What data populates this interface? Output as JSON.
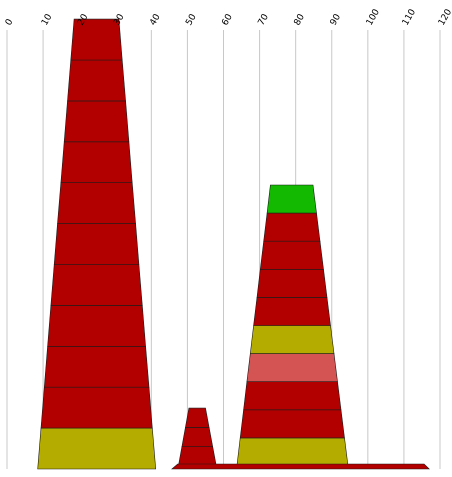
{
  "chart_data": {
    "type": "stacked-trapezoid",
    "xlim": [
      0,
      120
    ],
    "ticks": [
      0,
      10,
      20,
      30,
      40,
      50,
      60,
      70,
      80,
      90,
      100,
      110,
      120
    ],
    "tick_labels": [
      "0",
      "10",
      "20",
      "30",
      "40",
      "50",
      "60",
      "70",
      "80",
      "90",
      "100",
      "110",
      "120"
    ],
    "grid": true,
    "colors": {
      "red": "#b20000",
      "olive": "#b4ad00",
      "green": "#13b800",
      "pink": "#d45353",
      "grid": "#c8c8c8"
    },
    "stacks": [
      {
        "base_left": 8.5,
        "base_right": 41.2,
        "top_left": 18.6,
        "top_right": 31.0,
        "segments": [
          "olive",
          "red",
          "red",
          "red",
          "red",
          "red",
          "red",
          "red",
          "red",
          "red",
          "red"
        ]
      },
      {
        "base_left": 47.5,
        "base_right": 58.0,
        "top_left": 50.4,
        "top_right": 55.0,
        "segments": [
          "red",
          "red",
          "red"
        ]
      },
      {
        "base_left": 63.7,
        "base_right": 94.5,
        "top_left": 73.0,
        "top_right": 84.8,
        "segments": [
          "olive",
          "red",
          "red",
          "pink",
          "olive",
          "red",
          "red",
          "red",
          "red",
          "green"
        ]
      },
      {
        "base_left": 45.7,
        "base_right": 117.0,
        "top_left": 47.3,
        "top_right": 115.6,
        "segments": [
          "red"
        ]
      }
    ]
  }
}
